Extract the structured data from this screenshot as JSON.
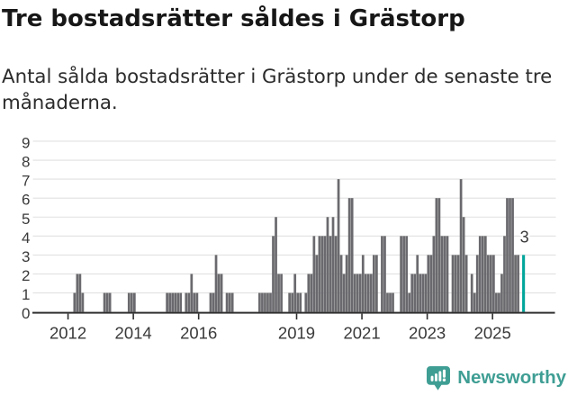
{
  "title": "Tre bostadsrätter såldes i Grästorp",
  "subtitle_line1": "Antal sålda bostadsrätter i Grästorp under de senaste tre",
  "subtitle_line2": "månaderna.",
  "annotation": {
    "last_value_label": "3"
  },
  "logo": {
    "text": "Newsworthy",
    "icon": "newsworthy-bar-chart-pin-icon",
    "color": "#3f9e94"
  },
  "chart_data": {
    "type": "bar",
    "title": "Tre bostadsrätter såldes i Grästorp",
    "xlabel": "",
    "ylabel": "",
    "x_unit": "month",
    "x_months": [
      "2011-01",
      "2011-02",
      "2011-03",
      "2011-04",
      "2011-05",
      "2011-06",
      "2011-07",
      "2011-08",
      "2011-09",
      "2011-10",
      "2011-11",
      "2011-12",
      "2012-01",
      "2012-02",
      "2012-03",
      "2012-04",
      "2012-05",
      "2012-06",
      "2012-07",
      "2012-08",
      "2012-09",
      "2012-10",
      "2012-11",
      "2012-12",
      "2013-01",
      "2013-02",
      "2013-03",
      "2013-04",
      "2013-05",
      "2013-06",
      "2013-07",
      "2013-08",
      "2013-09",
      "2013-10",
      "2013-11",
      "2013-12",
      "2014-01",
      "2014-02",
      "2014-03",
      "2014-04",
      "2014-05",
      "2014-06",
      "2014-07",
      "2014-08",
      "2014-09",
      "2014-10",
      "2014-11",
      "2014-12",
      "2015-01",
      "2015-02",
      "2015-03",
      "2015-04",
      "2015-05",
      "2015-06",
      "2015-07",
      "2015-08",
      "2015-09",
      "2015-10",
      "2015-11",
      "2015-12",
      "2016-01",
      "2016-02",
      "2016-03",
      "2016-04",
      "2016-05",
      "2016-06",
      "2016-07",
      "2016-08",
      "2016-09",
      "2016-10",
      "2016-11",
      "2016-12",
      "2017-01",
      "2017-02",
      "2017-03",
      "2017-04",
      "2017-05",
      "2017-06",
      "2017-07",
      "2017-08",
      "2017-09",
      "2017-10",
      "2017-11",
      "2017-12",
      "2018-01",
      "2018-02",
      "2018-03",
      "2018-04",
      "2018-05",
      "2018-06",
      "2018-07",
      "2018-08",
      "2018-09",
      "2018-10",
      "2018-11",
      "2018-12",
      "2019-01",
      "2019-02",
      "2019-03",
      "2019-04",
      "2019-05",
      "2019-06",
      "2019-07",
      "2019-08",
      "2019-09",
      "2019-10",
      "2019-11",
      "2019-12",
      "2020-01",
      "2020-02",
      "2020-03",
      "2020-04",
      "2020-05",
      "2020-06",
      "2020-07",
      "2020-08",
      "2020-09",
      "2020-10",
      "2020-11",
      "2020-12",
      "2021-01",
      "2021-02",
      "2021-03",
      "2021-04",
      "2021-05",
      "2021-06",
      "2021-07",
      "2021-08",
      "2021-09",
      "2021-10",
      "2021-11",
      "2021-12",
      "2022-01",
      "2022-02",
      "2022-03",
      "2022-04",
      "2022-05",
      "2022-06",
      "2022-07",
      "2022-08",
      "2022-09",
      "2022-10",
      "2022-11",
      "2022-12",
      "2023-01",
      "2023-02",
      "2023-03",
      "2023-04",
      "2023-05",
      "2023-06",
      "2023-07",
      "2023-08",
      "2023-09",
      "2023-10",
      "2023-11",
      "2023-12",
      "2024-01",
      "2024-02",
      "2024-03",
      "2024-04",
      "2024-05",
      "2024-06",
      "2024-07",
      "2024-08",
      "2024-09",
      "2024-10",
      "2024-11",
      "2024-12",
      "2025-01",
      "2025-02",
      "2025-03",
      "2025-04",
      "2025-05",
      "2025-06",
      "2025-07",
      "2025-08",
      "2025-09",
      "2025-10",
      "2025-11",
      "2025-12"
    ],
    "values": [
      0,
      0,
      0,
      0,
      0,
      0,
      0,
      0,
      0,
      0,
      0,
      0,
      0,
      0,
      1,
      2,
      2,
      1,
      0,
      0,
      0,
      0,
      0,
      0,
      0,
      1,
      1,
      1,
      0,
      0,
      0,
      0,
      0,
      0,
      1,
      1,
      1,
      0,
      0,
      0,
      0,
      0,
      0,
      0,
      0,
      0,
      0,
      0,
      1,
      1,
      1,
      1,
      1,
      1,
      0,
      1,
      1,
      2,
      1,
      1,
      0,
      0,
      0,
      0,
      1,
      1,
      3,
      2,
      2,
      0,
      1,
      1,
      1,
      0,
      0,
      0,
      0,
      0,
      0,
      0,
      0,
      0,
      1,
      1,
      1,
      1,
      1,
      4,
      5,
      2,
      2,
      0,
      0,
      1,
      1,
      2,
      1,
      1,
      0,
      1,
      2,
      2,
      4,
      3,
      4,
      4,
      4,
      5,
      4,
      5,
      4,
      7,
      3,
      2,
      3,
      6,
      6,
      2,
      2,
      2,
      3,
      2,
      2,
      2,
      3,
      3,
      0,
      4,
      4,
      1,
      1,
      1,
      0,
      0,
      4,
      4,
      4,
      1,
      2,
      2,
      3,
      2,
      2,
      2,
      3,
      3,
      4,
      6,
      6,
      4,
      4,
      4,
      0,
      3,
      3,
      3,
      7,
      5,
      3,
      0,
      2,
      1,
      3,
      4,
      4,
      4,
      3,
      3,
      3,
      1,
      1,
      2,
      4,
      6,
      6,
      6,
      3,
      3,
      0,
      3
    ],
    "highlight_index": 179,
    "highlight_value": 3,
    "bar_color": "#6a6a6e",
    "highlight_color": "#00a59b",
    "ylim": [
      0,
      9
    ],
    "yticks": [
      0,
      1,
      2,
      3,
      4,
      5,
      6,
      7,
      8,
      9
    ],
    "xtick_years": [
      2012,
      2014,
      2016,
      2019,
      2021,
      2023,
      2025
    ],
    "grid": true,
    "legend": false
  }
}
